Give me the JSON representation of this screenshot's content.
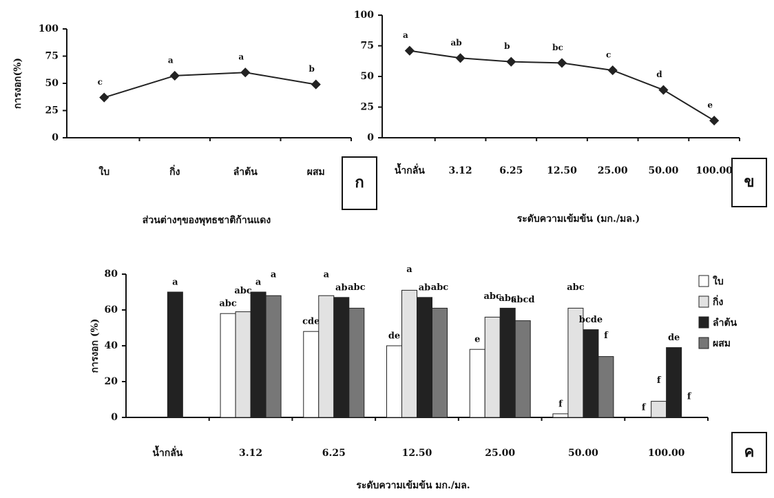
{
  "chart_data": [
    {
      "type": "line",
      "panel_label": "ก",
      "y_label": "การงอก(%)",
      "x_label": "ส่วนต่างๆของพุทธชาติก้านแดง",
      "categories": [
        "ใบ",
        "กิ่ง",
        "ลำต้น",
        "ผสม"
      ],
      "values": [
        37,
        57,
        60,
        49
      ],
      "point_labels": [
        "c",
        "a",
        "a",
        "b"
      ],
      "color": "#222222",
      "ylim": [
        0,
        100
      ],
      "yticks": [
        0,
        25,
        50,
        75,
        100
      ]
    },
    {
      "type": "line",
      "panel_label": "ข",
      "x_label": "ระดับความเข้มข้น (มก./มล.)",
      "categories": [
        "น้ำกลั่น",
        "3.12",
        "6.25",
        "12.50",
        "25.00",
        "50.00",
        "100.00"
      ],
      "values": [
        71,
        65,
        62,
        61,
        55,
        39,
        14
      ],
      "point_labels": [
        "a",
        "ab",
        "b",
        "bc",
        "c",
        "d",
        "e"
      ],
      "color": "#222222",
      "ylim": [
        0,
        100
      ],
      "yticks": [
        0,
        25,
        50,
        75,
        100
      ]
    },
    {
      "type": "bar",
      "panel_label": "ค",
      "y_label": "การงอก (%)",
      "x_label": "ระดับความเข้มข้น มก./มล.",
      "categories": [
        "น้ำกลั่น",
        "3.12",
        "6.25",
        "12.50",
        "25.00",
        "50.00",
        "100.00"
      ],
      "series": [
        {
          "name": "ใบ",
          "color": "#ffffff",
          "values": [
            null,
            58,
            48,
            40,
            38,
            2,
            0
          ],
          "significance": [
            null,
            "abc",
            "cde",
            "de",
            "e",
            "f",
            "f"
          ]
        },
        {
          "name": "กิ่ง",
          "color": "#e2e2e2",
          "values": [
            null,
            59,
            68,
            71,
            56,
            61,
            9
          ],
          "significance": [
            null,
            "abc",
            "a",
            "a",
            "abc",
            "abc",
            "f"
          ]
        },
        {
          "name": "ลำต้น",
          "color": "#222222",
          "values": [
            70,
            70,
            67,
            67,
            61,
            49,
            39
          ],
          "significance": [
            "a",
            "a",
            "ab",
            "ab",
            "abc",
            "bcde",
            "de"
          ]
        },
        {
          "name": "ผสม",
          "color": "#777777",
          "values": [
            null,
            68,
            61,
            61,
            54,
            34,
            0
          ],
          "significance": [
            null,
            "a",
            "abc",
            "abc",
            "abcd",
            "f",
            "f"
          ]
        }
      ],
      "ylim": [
        0,
        80
      ],
      "yticks": [
        0,
        20,
        40,
        60,
        80
      ]
    }
  ]
}
